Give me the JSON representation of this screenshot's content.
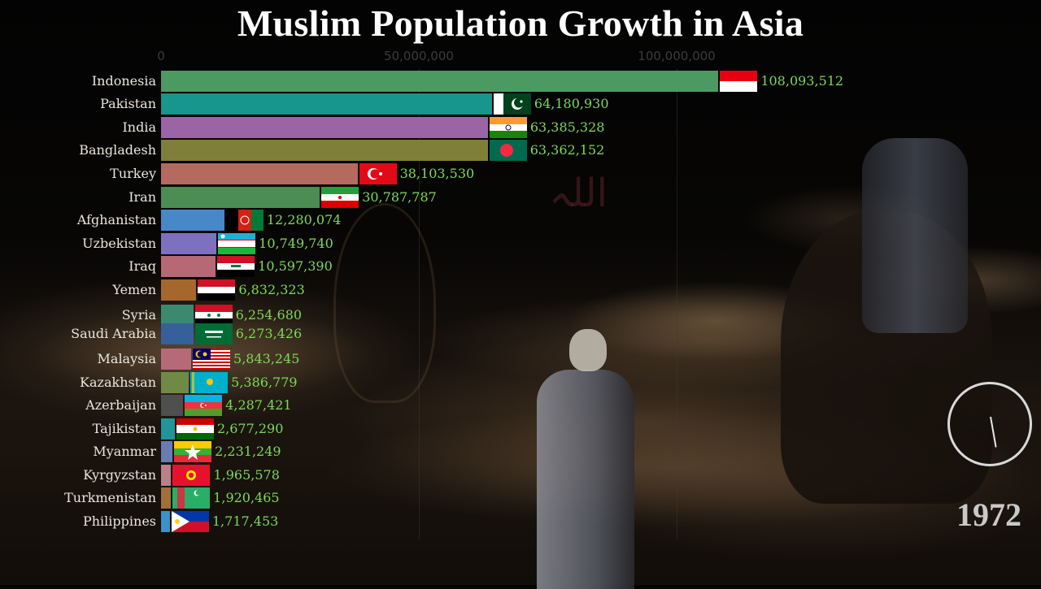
{
  "title": "Muslim Population Growth in Asia",
  "year": "1972",
  "axis": {
    "ticks": [
      {
        "label": "0",
        "value": 0
      },
      {
        "label": "50,000,000",
        "value": 50000000
      },
      {
        "label": "100,000,000",
        "value": 100000000
      }
    ]
  },
  "icons": {
    "clock": "clock-timer-icon"
  },
  "colors": {
    "value_text": "#7ed957",
    "label_text": "#ebe6dd",
    "title_text": "#ffffff",
    "year_text": "#c9c9c9"
  },
  "rows": [
    {
      "country": "Indonesia",
      "value_label": "108,093,512",
      "value": 108093512,
      "color": "#4a9a62",
      "flag": "indonesia"
    },
    {
      "country": "Pakistan",
      "value_label": "64,180,930",
      "value": 64180930,
      "color": "#16968c",
      "flag": "pakistan"
    },
    {
      "country": "India",
      "value_label": "63,385,328",
      "value": 63385328,
      "color": "#9a64a5",
      "flag": "india"
    },
    {
      "country": "Bangladesh",
      "value_label": "63,362,152",
      "value": 63362152,
      "color": "#7f7f3a",
      "flag": "bangladesh"
    },
    {
      "country": "Turkey",
      "value_label": "38,103,530",
      "value": 38103530,
      "color": "#b46a5f",
      "flag": "turkey"
    },
    {
      "country": "Iran",
      "value_label": "30,787,787",
      "value": 30787787,
      "color": "#4b8d53",
      "flag": "iran"
    },
    {
      "country": "Afghanistan",
      "value_label": "12,280,074",
      "value": 12280074,
      "color": "#4688c8",
      "flag": "afghanistan"
    },
    {
      "country": "Uzbekistan",
      "value_label": "10,749,740",
      "value": 10749740,
      "color": "#7d71bf",
      "flag": "uzbekistan"
    },
    {
      "country": "Iraq",
      "value_label": "10,597,390",
      "value": 10597390,
      "color": "#b66875",
      "flag": "iraq"
    },
    {
      "country": "Yemen",
      "value_label": "6,832,323",
      "value": 6832323,
      "color": "#a5672c",
      "flag": "yemen"
    },
    {
      "country": "Syria",
      "value_label": "6,254,680",
      "value": 6254680,
      "color": "#3b8a70",
      "flag": "syria"
    },
    {
      "country": "Saudi Arabia",
      "value_label": "6,273,426",
      "value": 6273426,
      "color": "#36609a",
      "flag": "saudi-arabia"
    },
    {
      "country": "Malaysia",
      "value_label": "5,843,245",
      "value": 5843245,
      "color": "#b66a78",
      "flag": "malaysia"
    },
    {
      "country": "Kazakhstan",
      "value_label": "5,386,779",
      "value": 5386779,
      "color": "#6f8a47",
      "flag": "kazakhstan"
    },
    {
      "country": "Azerbaijan",
      "value_label": "4,287,421",
      "value": 4287421,
      "color": "#4f4f4f",
      "flag": "azerbaijan"
    },
    {
      "country": "Tajikistan",
      "value_label": "2,677,290",
      "value": 2677290,
      "color": "#22949a",
      "flag": "tajikistan"
    },
    {
      "country": "Myanmar",
      "value_label": "2,231,249",
      "value": 2231249,
      "color": "#6b7ab0",
      "flag": "myanmar"
    },
    {
      "country": "Kyrgyzstan",
      "value_label": "1,965,578",
      "value": 1965578,
      "color": "#b9808a",
      "flag": "kyrgyzstan"
    },
    {
      "country": "Turkmenistan",
      "value_label": "1,920,465",
      "value": 1920465,
      "color": "#a0703a",
      "flag": "turkmenistan"
    },
    {
      "country": "Philippines",
      "value_label": "1,717,453",
      "value": 1717453,
      "color": "#3a92c6",
      "flag": "philippines"
    }
  ],
  "chart_data": {
    "type": "bar",
    "orientation": "horizontal",
    "title": "Muslim Population Growth in Asia",
    "subtitle": "1972",
    "xlabel": "",
    "ylabel": "",
    "xlim": [
      0,
      115000000
    ],
    "x_ticks": [
      0,
      50000000,
      100000000
    ],
    "x_tick_labels": [
      "0",
      "50,000,000",
      "100,000,000"
    ],
    "grid": true,
    "legend": "none",
    "categories": [
      "Indonesia",
      "Pakistan",
      "India",
      "Bangladesh",
      "Turkey",
      "Iran",
      "Afghanistan",
      "Uzbekistan",
      "Iraq",
      "Yemen",
      "Syria",
      "Saudi Arabia",
      "Malaysia",
      "Kazakhstan",
      "Azerbaijan",
      "Tajikistan",
      "Myanmar",
      "Kyrgyzstan",
      "Turkmenistan",
      "Philippines"
    ],
    "values": [
      108093512,
      64180930,
      63385328,
      63362152,
      38103530,
      30787787,
      12280074,
      10749740,
      10597390,
      6832323,
      6254680,
      6273426,
      5843245,
      5386779,
      4287421,
      2677290,
      2231249,
      1965578,
      1920465,
      1717453
    ],
    "annotations": [
      "1972"
    ]
  }
}
